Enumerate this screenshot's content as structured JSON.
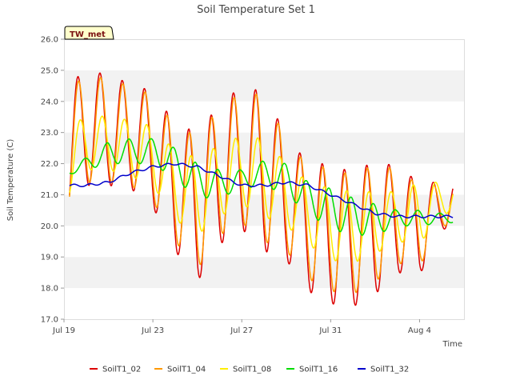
{
  "chart_data": {
    "type": "line",
    "title": "Soil Temperature Set 1",
    "xlabel": "Time",
    "ylabel": "Soil Temperature (C)",
    "badge": "TW_met",
    "xlim": [
      "2024-07-19",
      "2024-08-06"
    ],
    "ylim": [
      17.0,
      26.0
    ],
    "y_ticks": [
      "17.0",
      "18.0",
      "19.0",
      "20.0",
      "21.0",
      "22.0",
      "23.0",
      "24.0",
      "25.0",
      "26.0"
    ],
    "x_ticks": [
      {
        "date": "2024-07-19",
        "label": "Jul 19"
      },
      {
        "date": "2024-07-23",
        "label": "Jul 23"
      },
      {
        "date": "2024-07-27",
        "label": "Jul 27"
      },
      {
        "date": "2024-07-31",
        "label": "Jul 31"
      },
      {
        "date": "2024-08-04",
        "label": "Aug 4"
      }
    ],
    "grid": "horizontal bands",
    "legend_position": "bottom",
    "x_start": "2024-07-19",
    "x_end": "2024-08-05",
    "days": [
      "07-19",
      "07-20",
      "07-21",
      "07-22",
      "07-23",
      "07-24",
      "07-25",
      "07-26",
      "07-27",
      "07-28",
      "07-29",
      "07-30",
      "07-31",
      "08-01",
      "08-02",
      "08-03",
      "08-04",
      "08-05"
    ],
    "series": [
      {
        "name": "SoilT1_02",
        "color": "#dd0000",
        "min": [
          20.0,
          21.3,
          21.3,
          21.2,
          20.6,
          19.2,
          18.2,
          19.4,
          19.9,
          19.2,
          18.9,
          17.9,
          17.5,
          17.4,
          17.8,
          18.5,
          18.4,
          19.9
        ],
        "max": [
          24.3,
          25.1,
          24.8,
          24.6,
          24.3,
          23.3,
          23.0,
          23.9,
          24.5,
          24.3,
          22.9,
          22.0,
          22.0,
          21.7,
          22.1,
          21.9,
          21.4,
          21.4
        ],
        "phase": 0.62
      },
      {
        "name": "SoilT1_04",
        "color": "#ff9900",
        "min": [
          20.3,
          21.4,
          21.4,
          21.3,
          20.8,
          19.5,
          18.6,
          19.7,
          20.1,
          19.5,
          19.2,
          18.3,
          17.9,
          17.8,
          18.2,
          18.8,
          18.7,
          20.0
        ],
        "max": [
          24.2,
          24.9,
          24.7,
          24.5,
          24.2,
          23.2,
          22.9,
          23.8,
          24.3,
          24.2,
          22.8,
          21.9,
          21.9,
          21.6,
          22.0,
          21.8,
          21.3,
          21.3
        ],
        "phase": 0.65
      },
      {
        "name": "SoilT1_08",
        "color": "#ffee00",
        "min": [
          20.8,
          21.8,
          21.8,
          21.6,
          21.3,
          20.2,
          19.7,
          20.3,
          20.7,
          20.3,
          20.0,
          19.4,
          18.9,
          18.8,
          19.1,
          19.5,
          19.4,
          20.4
        ],
        "max": [
          22.9,
          23.6,
          23.5,
          23.4,
          23.2,
          22.4,
          22.2,
          22.6,
          22.9,
          22.8,
          22.0,
          21.4,
          21.2,
          21.1,
          21.1,
          21.1,
          21.4,
          21.4
        ],
        "phase": 0.72
      },
      {
        "name": "SoilT1_16",
        "color": "#00dd00",
        "min": [
          21.6,
          21.8,
          22.0,
          22.0,
          22.0,
          21.5,
          20.9,
          20.9,
          21.2,
          21.3,
          21.0,
          20.4,
          19.9,
          19.7,
          19.7,
          20.0,
          20.0,
          20.1
        ],
        "max": [
          21.7,
          22.2,
          22.7,
          22.8,
          22.8,
          22.5,
          22.0,
          21.8,
          21.8,
          22.1,
          22.0,
          21.4,
          21.2,
          20.9,
          20.7,
          20.5,
          20.5,
          20.4
        ],
        "phase": 0.92
      },
      {
        "name": "SoilT1_32",
        "color": "#0000cc",
        "mean": [
          21.3,
          21.3,
          21.4,
          21.7,
          21.9,
          22.0,
          21.9,
          21.6,
          21.3,
          21.3,
          21.4,
          21.3,
          21.0,
          20.7,
          20.4,
          20.3,
          20.3,
          20.3
        ],
        "amp": 0.04,
        "phase": 1.0
      }
    ]
  }
}
